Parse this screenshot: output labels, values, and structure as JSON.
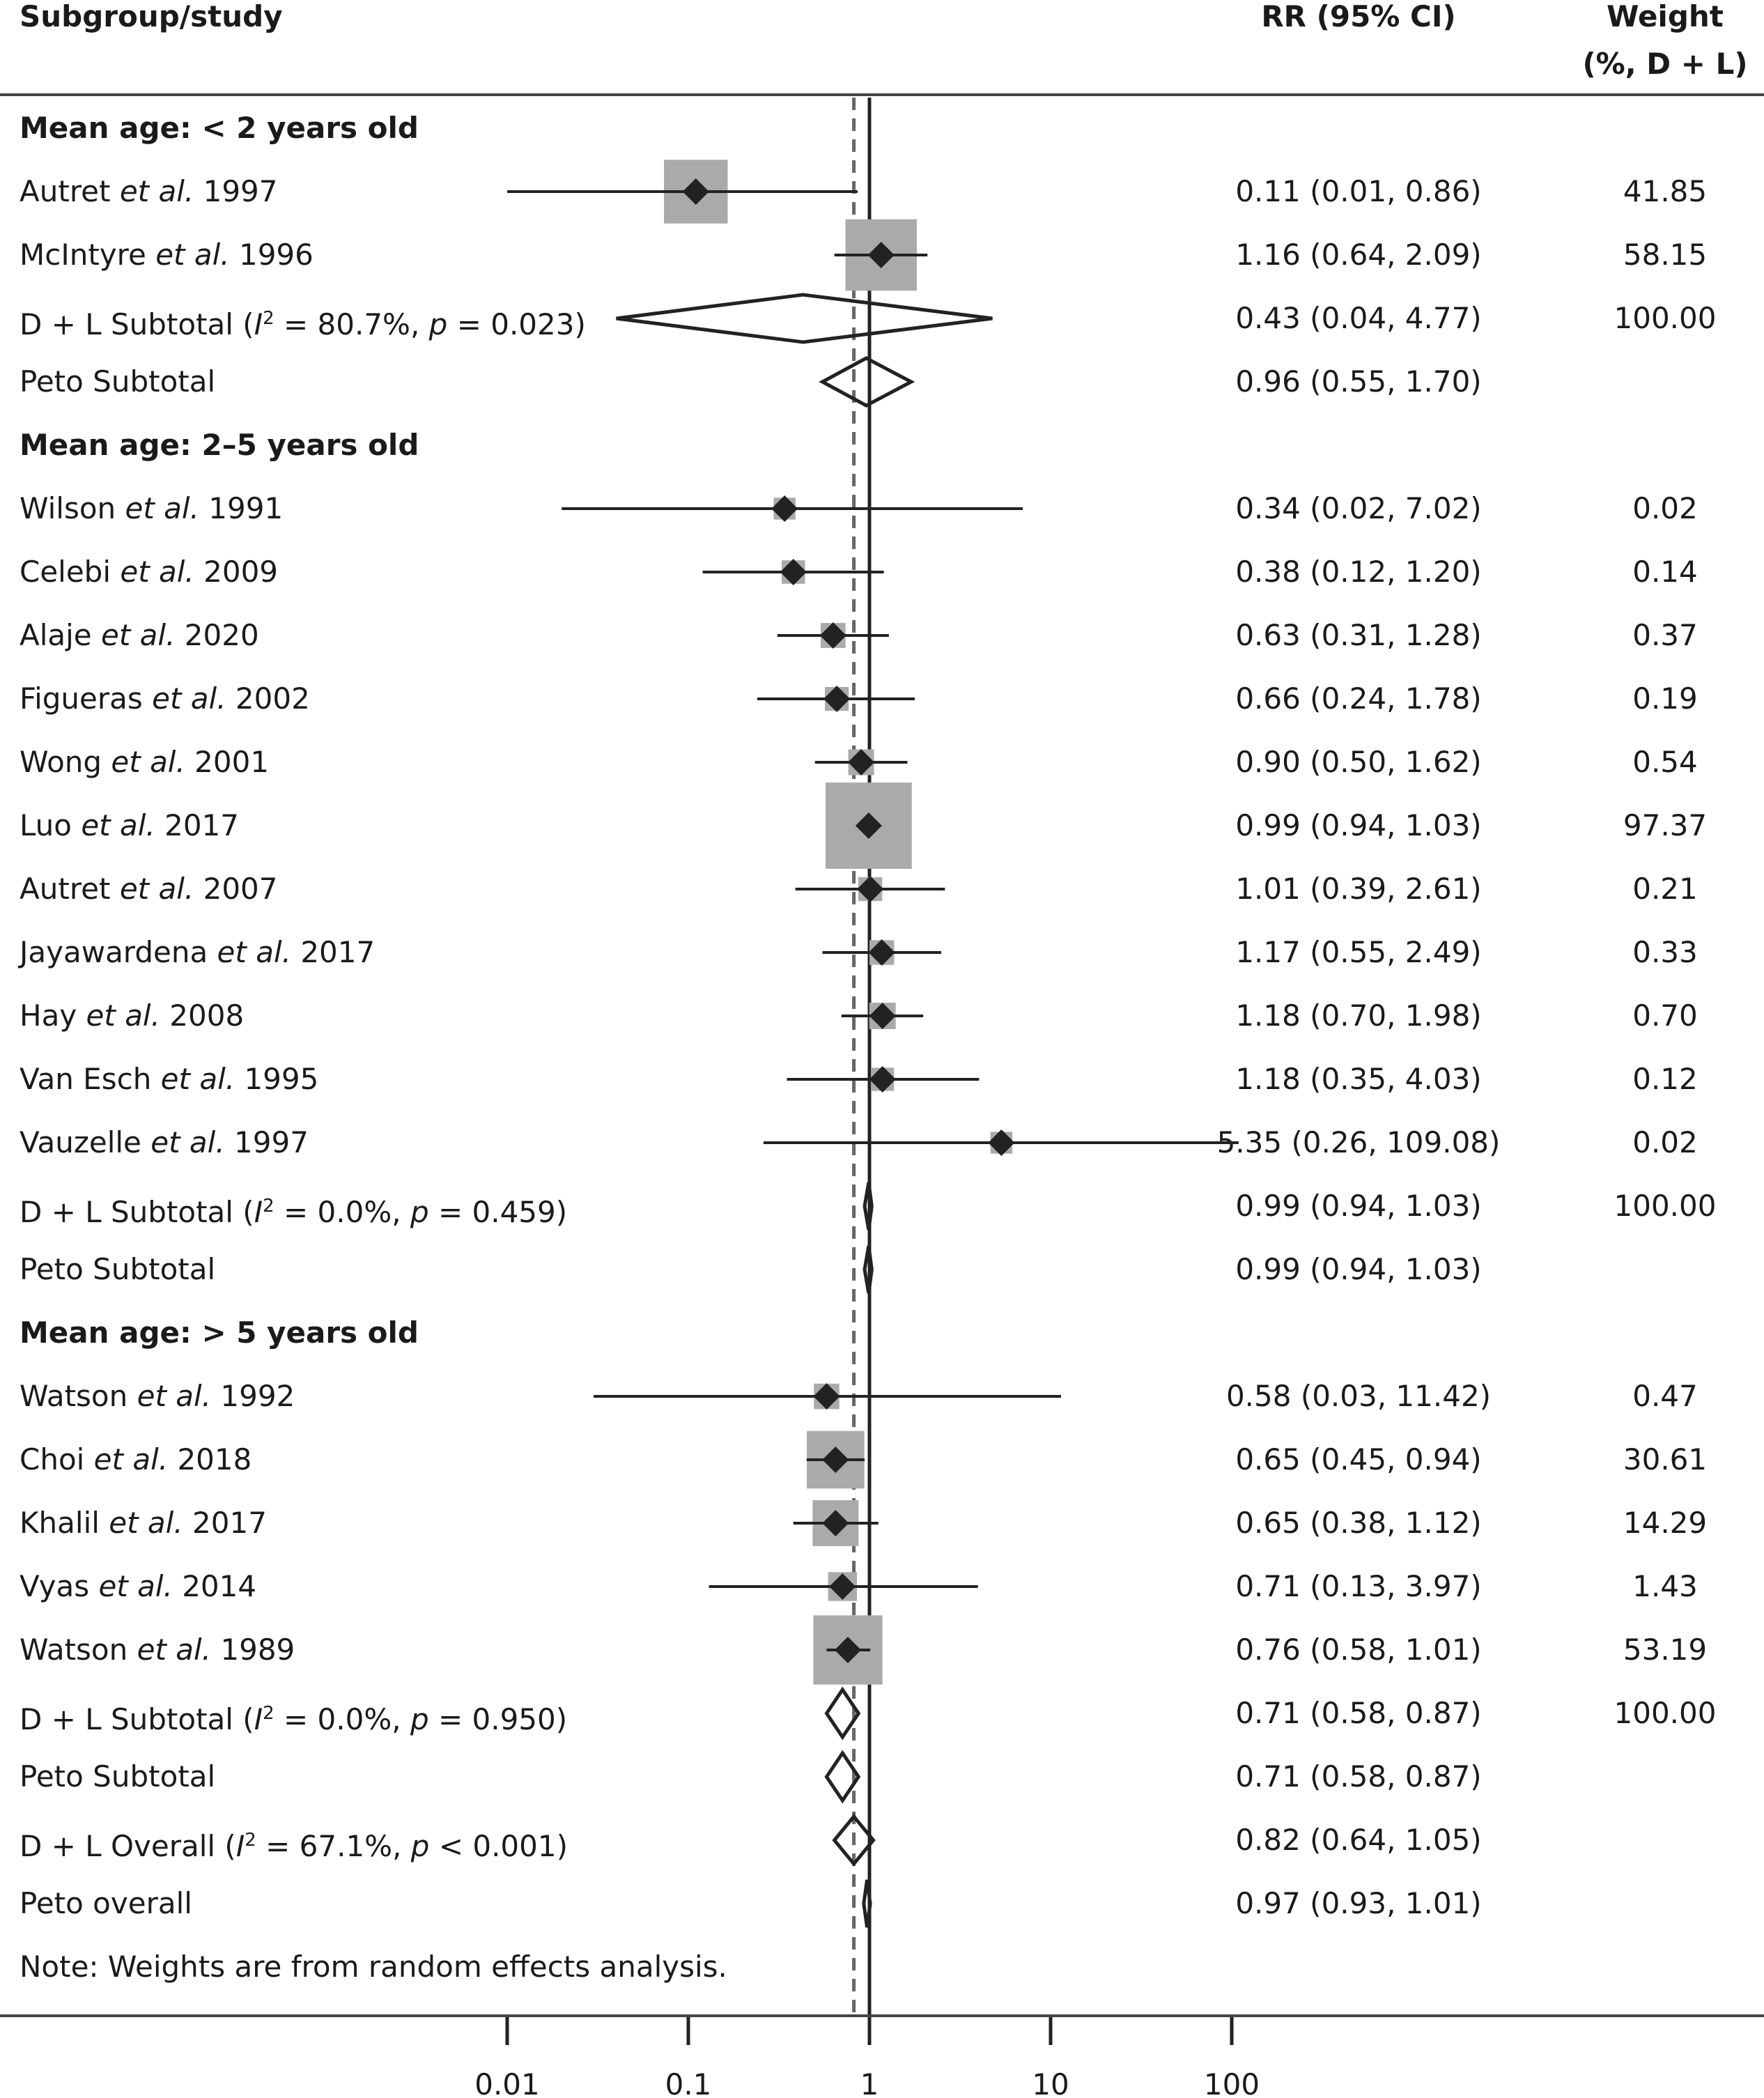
{
  "headers": {
    "study": "Subgroup/study",
    "rr": "RR (95% CI)",
    "weight_line1": "Weight",
    "weight_line2": "(%, D + L)"
  },
  "note": "Note: Weights are from random effects analysis.",
  "chart_data": {
    "type": "forest",
    "xscale": "log",
    "x_ticks": [
      "0.01",
      "0.1",
      "1",
      "10",
      "100"
    ],
    "null_line": 1,
    "overall_dashed_line": 0.82,
    "colors": {
      "box": "#aaaaaa",
      "marker": "#222222",
      "line": "#222222",
      "dashed": "#666666"
    },
    "rows": [
      {
        "kind": "header",
        "label": "Mean age: < 2 years old"
      },
      {
        "kind": "study",
        "label": "Autret et al. 1997",
        "author": "Autret",
        "year": "1997",
        "rr": 0.11,
        "lo": 0.01,
        "hi": 0.86,
        "rr_text": "0.11 (0.01, 0.86)",
        "weight": "41.85"
      },
      {
        "kind": "study",
        "label": "McIntyre et al. 1996",
        "author": "McIntyre",
        "year": "1996",
        "rr": 1.16,
        "lo": 0.64,
        "hi": 2.09,
        "rr_text": "1.16 (0.64, 2.09)",
        "weight": "58.15"
      },
      {
        "kind": "subtotal",
        "label": "D + L Subtotal (I² = 80.7%, p = 0.023)",
        "label_pre": "D + L Subtotal (",
        "i2": "= 80.7%, ",
        "pval": " = 0.023)",
        "rr": 0.43,
        "lo": 0.04,
        "hi": 4.77,
        "rr_text": "0.43 (0.04, 4.77)",
        "weight": "100.00"
      },
      {
        "kind": "peto",
        "label": "Peto Subtotal",
        "rr": 0.96,
        "lo": 0.55,
        "hi": 1.7,
        "rr_text": "0.96 (0.55, 1.70)",
        "weight": ""
      },
      {
        "kind": "header",
        "label": "Mean age: 2–5 years old"
      },
      {
        "kind": "study",
        "label": "Wilson et al. 1991",
        "author": "Wilson",
        "year": "1991",
        "rr": 0.34,
        "lo": 0.02,
        "hi": 7.02,
        "rr_text": "0.34 (0.02, 7.02)",
        "weight": "0.02"
      },
      {
        "kind": "study",
        "label": "Celebi et al. 2009",
        "author": "Celebi",
        "year": "2009",
        "rr": 0.38,
        "lo": 0.12,
        "hi": 1.2,
        "rr_text": "0.38 (0.12, 1.20)",
        "weight": "0.14"
      },
      {
        "kind": "study",
        "label": "Alaje et al. 2020",
        "author": "Alaje",
        "year": "2020",
        "rr": 0.63,
        "lo": 0.31,
        "hi": 1.28,
        "rr_text": "0.63 (0.31, 1.28)",
        "weight": "0.37"
      },
      {
        "kind": "study",
        "label": "Figueras et al. 2002",
        "author": "Figueras",
        "year": "2002",
        "rr": 0.66,
        "lo": 0.24,
        "hi": 1.78,
        "rr_text": "0.66 (0.24, 1.78)",
        "weight": "0.19"
      },
      {
        "kind": "study",
        "label": "Wong et al. 2001",
        "author": "Wong",
        "year": "2001",
        "rr": 0.9,
        "lo": 0.5,
        "hi": 1.62,
        "rr_text": "0.90 (0.50, 1.62)",
        "weight": "0.54"
      },
      {
        "kind": "study",
        "label": "Luo et al. 2017",
        "author": "Luo",
        "year": "2017",
        "rr": 0.99,
        "lo": 0.94,
        "hi": 1.03,
        "rr_text": "0.99 (0.94, 1.03)",
        "weight": "97.37"
      },
      {
        "kind": "study",
        "label": "Autret et al. 2007",
        "author": "Autret",
        "year": "2007",
        "rr": 1.01,
        "lo": 0.39,
        "hi": 2.61,
        "rr_text": "1.01 (0.39, 2.61)",
        "weight": "0.21"
      },
      {
        "kind": "study",
        "label": "Jayawardena et al. 2017",
        "author": "Jayawardena",
        "year": "2017",
        "rr": 1.17,
        "lo": 0.55,
        "hi": 2.49,
        "rr_text": "1.17 (0.55, 2.49)",
        "weight": "0.33"
      },
      {
        "kind": "study",
        "label": "Hay et al. 2008",
        "author": "Hay",
        "year": "2008",
        "rr": 1.18,
        "lo": 0.7,
        "hi": 1.98,
        "rr_text": "1.18 (0.70, 1.98)",
        "weight": "0.70"
      },
      {
        "kind": "study",
        "label": "Van Esch et al. 1995",
        "author": "Van Esch",
        "year": "1995",
        "rr": 1.18,
        "lo": 0.35,
        "hi": 4.03,
        "rr_text": "1.18 (0.35, 4.03)",
        "weight": "0.12"
      },
      {
        "kind": "study",
        "label": "Vauzelle et al. 1997",
        "author": "Vauzelle",
        "year": "1997",
        "rr": 5.35,
        "lo": 0.26,
        "hi": 109.08,
        "rr_text": "5.35 (0.26, 109.08)",
        "weight": "0.02"
      },
      {
        "kind": "subtotal",
        "label": "D + L Subtotal (I² = 0.0%, p = 0.459)",
        "label_pre": "D + L Subtotal (",
        "i2": "= 0.0%, ",
        "pval": " = 0.459)",
        "rr": 0.99,
        "lo": 0.94,
        "hi": 1.03,
        "rr_text": "0.99 (0.94, 1.03)",
        "weight": "100.00"
      },
      {
        "kind": "peto",
        "label": "Peto Subtotal",
        "rr": 0.99,
        "lo": 0.94,
        "hi": 1.03,
        "rr_text": "0.99 (0.94, 1.03)",
        "weight": ""
      },
      {
        "kind": "header",
        "label": "Mean age: > 5 years old"
      },
      {
        "kind": "study",
        "label": "Watson et al. 1992",
        "author": "Watson",
        "year": "1992",
        "rr": 0.58,
        "lo": 0.03,
        "hi": 11.42,
        "rr_text": "0.58 (0.03, 11.42)",
        "weight": "0.47"
      },
      {
        "kind": "study",
        "label": "Choi et al. 2018",
        "author": "Choi",
        "year": "2018",
        "rr": 0.65,
        "lo": 0.45,
        "hi": 0.94,
        "rr_text": "0.65 (0.45, 0.94)",
        "weight": "30.61"
      },
      {
        "kind": "study",
        "label": "Khalil et al. 2017",
        "author": "Khalil",
        "year": "2017",
        "rr": 0.65,
        "lo": 0.38,
        "hi": 1.12,
        "rr_text": "0.65 (0.38, 1.12)",
        "weight": "14.29"
      },
      {
        "kind": "study",
        "label": "Vyas et al. 2014",
        "author": "Vyas",
        "year": "2014",
        "rr": 0.71,
        "lo": 0.13,
        "hi": 3.97,
        "rr_text": "0.71 (0.13, 3.97)",
        "weight": "1.43"
      },
      {
        "kind": "study",
        "label": "Watson et al. 1989",
        "author": "Watson",
        "year": "1989",
        "rr": 0.76,
        "lo": 0.58,
        "hi": 1.01,
        "rr_text": "0.76 (0.58, 1.01)",
        "weight": "53.19"
      },
      {
        "kind": "subtotal",
        "label": "D + L Subtotal (I² = 0.0%, p = 0.950)",
        "label_pre": "D + L Subtotal (",
        "i2": "= 0.0%, ",
        "pval": " = 0.950)",
        "rr": 0.71,
        "lo": 0.58,
        "hi": 0.87,
        "rr_text": "0.71 (0.58, 0.87)",
        "weight": "100.00"
      },
      {
        "kind": "peto",
        "label": "Peto Subtotal",
        "rr": 0.71,
        "lo": 0.58,
        "hi": 0.87,
        "rr_text": "0.71 (0.58, 0.87)",
        "weight": ""
      },
      {
        "kind": "overall",
        "label": "D + L Overall (I² = 67.1%, p < 0.001)",
        "label_pre": "D + L Overall (",
        "i2": "= 67.1%, ",
        "pval": " < 0.001)",
        "rr": 0.82,
        "lo": 0.64,
        "hi": 1.05,
        "rr_text": "0.82 (0.64, 1.05)",
        "weight": ""
      },
      {
        "kind": "peto",
        "label": "Peto overall",
        "rr": 0.97,
        "lo": 0.93,
        "hi": 1.01,
        "rr_text": "0.97 (0.93, 1.01)",
        "weight": ""
      }
    ]
  }
}
